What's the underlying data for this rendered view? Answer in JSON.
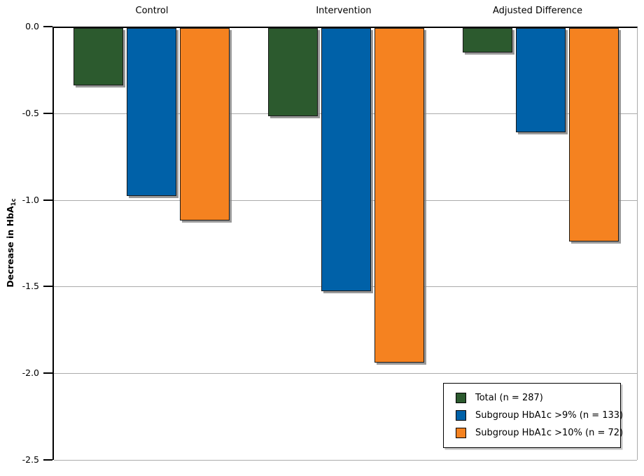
{
  "figure": {
    "background": "#ffffff"
  },
  "chart_data": {
    "type": "bar",
    "categories": [
      "Control",
      "Intervention",
      "Adjusted Difference"
    ],
    "series": [
      {
        "name": "Total (n = 287)",
        "color": "#2c5a2e",
        "values": [
          -0.33,
          -0.51,
          -0.14
        ]
      },
      {
        "name": "Subgroup HbA1c >9% (n = 133)",
        "color": "#0061a8",
        "values": [
          -0.97,
          -1.52,
          -0.6
        ]
      },
      {
        "name": "Subgroup HbA1c >10% (n = 72)",
        "color": "#f58220",
        "values": [
          -1.11,
          -1.93,
          -1.23
        ]
      }
    ],
    "title": "",
    "xlabel": "",
    "ylabel_main": "Decrease in HbA",
    "ylabel_sub": "1c",
    "ylim": [
      -2.5,
      0
    ],
    "ytick_labels": [
      "0.0",
      "-0.5",
      "-1.0",
      "-1.5",
      "-2.0",
      "-2.5"
    ],
    "grid": true,
    "legend_position": "inside-bottom-right",
    "colors": {
      "axis": "#000000",
      "gridline": "#ababab",
      "bar_border": "#1a1a1a",
      "bar_shadow": "#808080"
    }
  }
}
